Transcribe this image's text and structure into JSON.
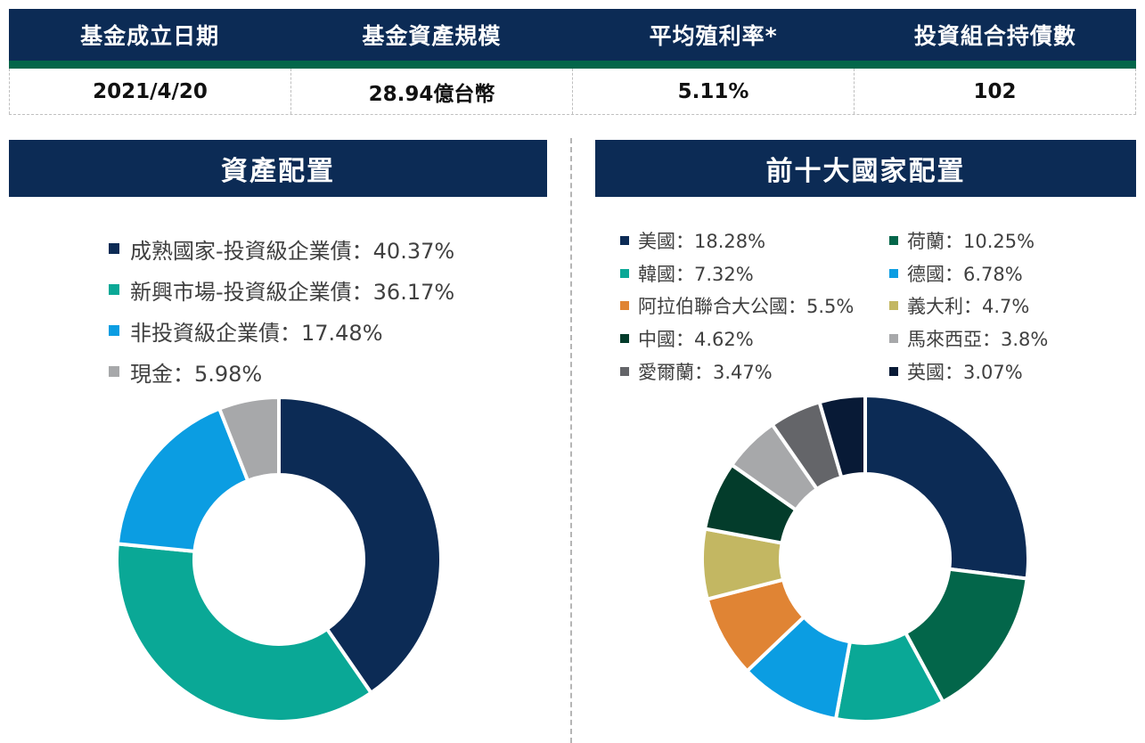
{
  "summary": {
    "headers": [
      "基金成立日期",
      "基金資產規模",
      "平均殖利率*",
      "投資組合持債數"
    ],
    "values": [
      "2021/4/20",
      "28.94億台幣",
      "5.11%",
      "102"
    ]
  },
  "colors": {
    "navy": "#0c2b55",
    "green_bar": "#03664a"
  },
  "chart_data": [
    {
      "type": "pie",
      "variant": "donut",
      "title": "資產配置",
      "legend_placement": "top",
      "categories": [
        "成熟國家-投資級企業債",
        "新興市場-投資級企業債",
        "非投資級企業債",
        "現金"
      ],
      "values": [
        40.37,
        36.17,
        17.48,
        5.98
      ],
      "unit": "%",
      "colors": [
        "#0c2b55",
        "#0aa896",
        "#0b9de2",
        "#a7a8aa"
      ],
      "legend_labels": [
        "成熟國家-投資級企業債：40.37%",
        "新興市場-投資級企業債：36.17%",
        "非投資級企業債：17.48%",
        "現金：5.98%"
      ]
    },
    {
      "type": "pie",
      "variant": "donut",
      "title": "前十大國家配置",
      "legend_placement": "top",
      "categories": [
        "美國",
        "荷蘭",
        "韓國",
        "德國",
        "阿拉伯聯合大公國",
        "義大利",
        "中國",
        "馬來西亞",
        "愛爾蘭",
        "英國"
      ],
      "values": [
        18.28,
        10.25,
        7.32,
        6.78,
        5.5,
        4.7,
        4.62,
        3.8,
        3.47,
        3.07
      ],
      "unit": "%",
      "colors": [
        "#0c2b55",
        "#03664a",
        "#0aa896",
        "#0b9de2",
        "#e08434",
        "#c3b762",
        "#033c2b",
        "#a7a8aa",
        "#646569",
        "#081a36"
      ],
      "legend_labels": [
        "美國：18.28%",
        "荷蘭：10.25%",
        "韓國：7.32%",
        "德國：6.78%",
        "阿拉伯聯合大公國：5.5%",
        "義大利：4.7%",
        "中國：4.62%",
        "馬來西亞：3.8%",
        "愛爾蘭：3.47%",
        "英國：3.07%"
      ]
    }
  ]
}
